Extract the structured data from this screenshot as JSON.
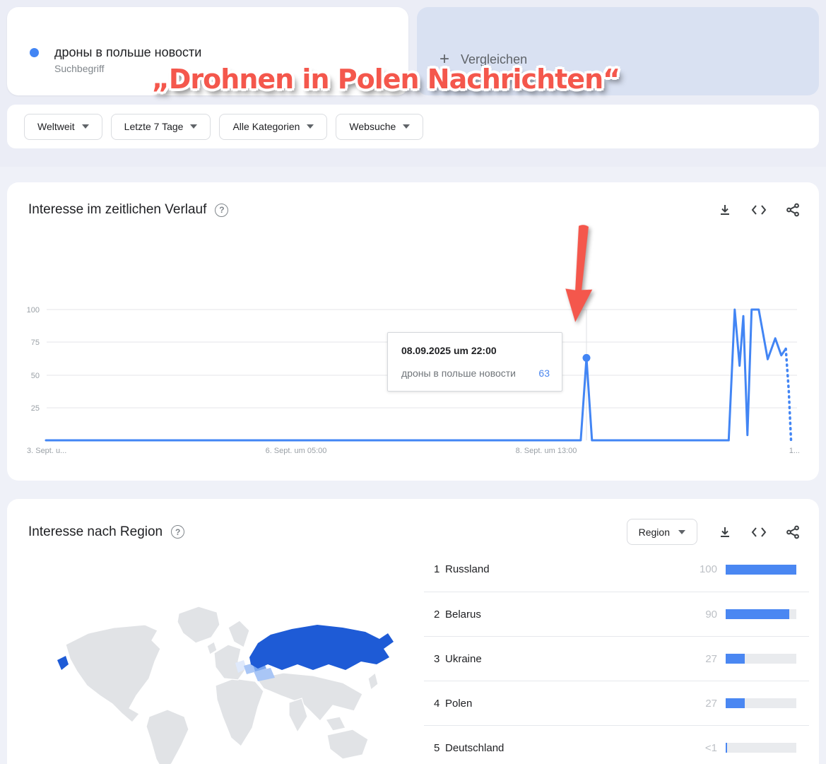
{
  "colors": {
    "accent_blue": "#4285f4",
    "bar_blue": "#4a87f2",
    "map_russia": "#1e5bd6",
    "map_belarus": "#7aa7f0",
    "map_light": "#a9c6f6",
    "map_faint": "#dfe9fb",
    "map_gray": "#e1e3e6",
    "overlay_red": "#f4574c",
    "compare_bg": "#d9e1f2"
  },
  "term_card": {
    "term": "дроны в польше новости",
    "type_label": "Suchbegriff"
  },
  "compare_card": {
    "plus": "+",
    "label": "Vergleichen"
  },
  "overlay": {
    "title": "„Drohnen in Polen Nachrichten“"
  },
  "filters": [
    {
      "label": "Weltweit"
    },
    {
      "label": "Letzte 7 Tage"
    },
    {
      "label": "Alle Kategorien"
    },
    {
      "label": "Websuche"
    }
  ],
  "timeseries": {
    "title": "Interesse im zeitlichen Verlauf",
    "help": "?",
    "y_ticks": [
      "100",
      "75",
      "50",
      "25"
    ],
    "x_ticks": [
      "3. Sept. u...",
      "6. Sept. um 05:00",
      "8. Sept. um 13:00",
      "1..."
    ]
  },
  "tooltip": {
    "date": "08.09.2025 um 22:00",
    "term": "дроны в польше новости",
    "value": "63"
  },
  "regions": {
    "title": "Interesse nach Region",
    "help": "?",
    "dropdown": "Region",
    "rows": [
      {
        "rank": "1",
        "name": "Russland",
        "value": "100",
        "pct": 100
      },
      {
        "rank": "2",
        "name": "Belarus",
        "value": "90",
        "pct": 90
      },
      {
        "rank": "3",
        "name": "Ukraine",
        "value": "27",
        "pct": 27
      },
      {
        "rank": "4",
        "name": "Polen",
        "value": "27",
        "pct": 27
      },
      {
        "rank": "5",
        "name": "Deutschland",
        "value": "<1",
        "pct": 2
      }
    ]
  },
  "chart_data": [
    {
      "type": "line",
      "title": "Interesse im zeitlichen Verlauf",
      "series": [
        {
          "name": "дроны в польше новости",
          "color": "#4285f4"
        }
      ],
      "ylim": [
        0,
        100
      ],
      "y_ticks": [
        100,
        75,
        50,
        25
      ],
      "x_tick_labels": [
        "3. Sept. u...",
        "6. Sept. um 05:00",
        "8. Sept. um 13:00",
        "1..."
      ],
      "grid": true,
      "points_solid": [
        [
          0.0,
          0
        ],
        [
          0.705,
          0
        ],
        [
          0.712,
          0
        ],
        [
          0.7197,
          63
        ],
        [
          0.727,
          0
        ],
        [
          0.735,
          0
        ],
        [
          0.905,
          0
        ],
        [
          0.909,
          0
        ],
        [
          0.917,
          100
        ],
        [
          0.9235,
          57
        ],
        [
          0.9285,
          95
        ],
        [
          0.934,
          4
        ],
        [
          0.9395,
          100
        ],
        [
          0.949,
          100
        ],
        [
          0.961,
          62
        ],
        [
          0.971,
          78
        ],
        [
          0.979,
          65
        ],
        [
          0.985,
          70
        ]
      ],
      "points_dotted": [
        [
          0.985,
          70
        ],
        [
          0.989,
          38
        ],
        [
          0.992,
          0
        ]
      ],
      "highlight": {
        "x": 0.7197,
        "value": 63,
        "date": "08.09.2025 um 22:00"
      }
    },
    {
      "type": "table",
      "title": "Interesse nach Region",
      "columns": [
        "rank",
        "region",
        "value"
      ],
      "rows": [
        [
          "1",
          "Russland",
          100
        ],
        [
          "2",
          "Belarus",
          90
        ],
        [
          "3",
          "Ukraine",
          27
        ],
        [
          "4",
          "Polen",
          27
        ],
        [
          "5",
          "Deutschland",
          "<1"
        ]
      ]
    },
    {
      "type": "heatmap",
      "title": "world-map-choropleth",
      "highlighted_regions": [
        {
          "name": "Russland",
          "intensity": 100
        },
        {
          "name": "Belarus",
          "intensity": 90
        },
        {
          "name": "Ukraine",
          "intensity": 27
        },
        {
          "name": "Polen",
          "intensity": 27
        },
        {
          "name": "Deutschland",
          "intensity": 1
        }
      ]
    }
  ]
}
